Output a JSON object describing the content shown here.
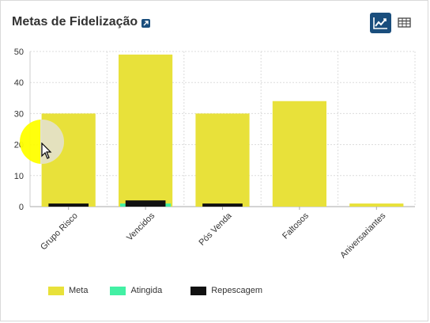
{
  "header": {
    "title": "Metas de Fidelização",
    "external_link_icon": "external-link-icon",
    "chart_view_icon": "line-chart-icon",
    "table_view_icon": "table-icon"
  },
  "colors": {
    "meta": "#e8e13a",
    "atingida": "#43f0a4",
    "repescagem": "#111111",
    "accent": "#1a4e7d",
    "grid": "#dcdcdc"
  },
  "legend": [
    {
      "label": "Meta",
      "color": "#e8e13a"
    },
    {
      "label": "Atingida",
      "color": "#43f0a4"
    },
    {
      "label": "Repescagem",
      "color": "#111111"
    }
  ],
  "chart_data": {
    "type": "bar",
    "categories": [
      "Grupo Risco",
      "Vencidos",
      "Pós Venda",
      "Faltosos",
      "Aniversariantes"
    ],
    "series": [
      {
        "name": "Meta",
        "values": [
          30,
          49,
          30,
          34,
          1
        ]
      },
      {
        "name": "Atingida",
        "values": [
          0,
          1,
          0,
          0,
          0
        ]
      },
      {
        "name": "Repescagem",
        "values": [
          1,
          2,
          1,
          0,
          0
        ]
      }
    ],
    "yticks": [
      "0",
      "10",
      "20",
      "30",
      "40",
      "50"
    ],
    "ylim": [
      0,
      50
    ],
    "grid": true,
    "legend_position": "bottom"
  }
}
